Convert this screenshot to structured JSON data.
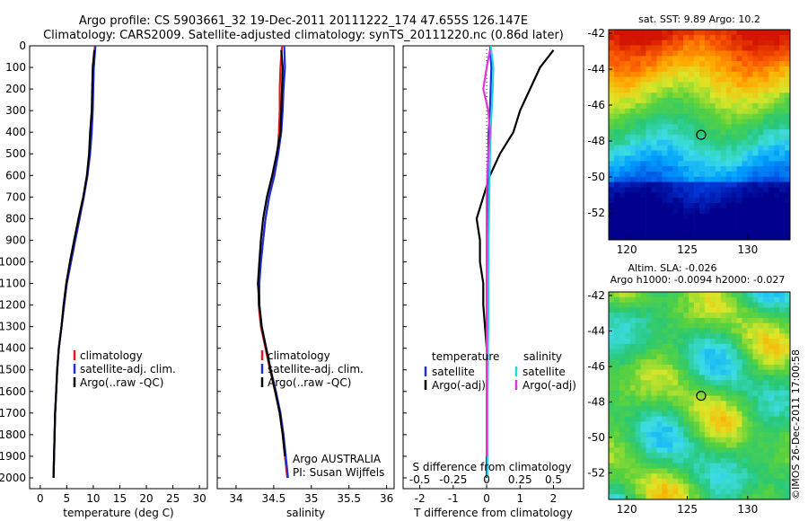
{
  "title": {
    "line1": "Argo profile: CS 5903661_32 19-Dec-2011 20111222_174 47.655S 126.147E",
    "line2": "Climatology: CARS2009. Satellite-adjusted climatology: synTS_20111220.nc (0.86d later)"
  },
  "colors": {
    "climatology": "#e41a1c",
    "satellite": "#1f2fd6",
    "argo": "#000000",
    "salinity_satellite": "#22d4e6",
    "salinity_argo": "#e433d8"
  },
  "chart_data": [
    {
      "type": "line",
      "id": "temperature",
      "xlabel": "temperature (deg C)",
      "xticks": [
        0,
        5,
        10,
        15,
        20,
        25,
        30
      ],
      "xlim": [
        -2,
        31.5
      ],
      "ylim": [
        0,
        2050
      ],
      "yticks": [
        0,
        100,
        200,
        300,
        400,
        500,
        600,
        700,
        800,
        900,
        1000,
        1100,
        1200,
        1300,
        1400,
        1500,
        1600,
        1700,
        1800,
        1900,
        2000
      ],
      "yreversed": true,
      "legend": [
        "climatology",
        "satellite-adj. clim.",
        "Argo(..raw -QC)"
      ],
      "series": [
        {
          "name": "climatology",
          "color": "#e41a1c",
          "x": [
            10.3,
            10.0,
            9.9,
            9.8,
            9.6,
            9.3,
            8.9,
            8.2,
            7.4,
            6.6,
            5.8,
            5.0,
            4.5,
            4.0,
            3.5,
            3.2,
            3.0,
            2.8,
            2.7,
            2.6,
            2.5
          ],
          "y": [
            0,
            100,
            200,
            300,
            400,
            500,
            600,
            700,
            800,
            900,
            1000,
            1100,
            1200,
            1300,
            1400,
            1500,
            1600,
            1700,
            1800,
            1900,
            2000
          ]
        },
        {
          "name": "satellite-adj. clim.",
          "color": "#1f2fd6",
          "x": [
            10.4,
            10.1,
            10.0,
            9.9,
            9.7,
            9.4,
            8.9,
            8.2,
            7.4,
            6.6,
            5.8,
            5.0,
            4.5,
            4.0,
            3.5,
            3.2,
            3.0,
            2.8,
            2.7,
            2.6,
            2.5
          ],
          "y": [
            0,
            100,
            200,
            300,
            400,
            500,
            600,
            700,
            800,
            900,
            1000,
            1100,
            1200,
            1300,
            1400,
            1500,
            1600,
            1700,
            1800,
            1900,
            2000
          ]
        },
        {
          "name": "Argo(..raw -QC)",
          "color": "#000000",
          "x": [
            10.2,
            9.9,
            9.8,
            9.7,
            9.4,
            9.2,
            8.8,
            8.1,
            7.2,
            6.4,
            5.6,
            4.9,
            4.4,
            4.0,
            3.5,
            3.2,
            3.0,
            2.8,
            2.7,
            2.6,
            2.5
          ],
          "y": [
            20,
            100,
            200,
            300,
            400,
            500,
            600,
            700,
            800,
            900,
            1000,
            1100,
            1200,
            1300,
            1400,
            1500,
            1600,
            1700,
            1800,
            1900,
            2000
          ]
        }
      ]
    },
    {
      "type": "line",
      "id": "salinity",
      "xlabel": "salinity",
      "xticks": [
        34,
        34.5,
        35,
        35.5,
        36
      ],
      "xlim": [
        33.75,
        36.1
      ],
      "ylim": [
        0,
        2050
      ],
      "yreversed": true,
      "legend": [
        "climatology",
        "satellite-adj. clim.",
        "Argo(..raw -QC)"
      ],
      "annotations": [
        "Argo AUSTRALIA",
        "PI: Susan Wijffels"
      ],
      "series": [
        {
          "name": "climatology",
          "color": "#e41a1c",
          "x": [
            34.61,
            34.59,
            34.58,
            34.58,
            34.57,
            34.55,
            34.5,
            34.44,
            34.39,
            34.36,
            34.33,
            34.3,
            34.3,
            34.33,
            34.39,
            34.45,
            34.52,
            34.58,
            34.62,
            34.65,
            34.68
          ],
          "y": [
            0,
            100,
            200,
            300,
            400,
            500,
            600,
            700,
            800,
            900,
            1000,
            1100,
            1200,
            1300,
            1400,
            1500,
            1600,
            1700,
            1800,
            1900,
            2000
          ]
        },
        {
          "name": "satellite-adj. clim.",
          "color": "#1f2fd6",
          "x": [
            34.64,
            34.65,
            34.63,
            34.62,
            34.6,
            34.56,
            34.51,
            34.44,
            34.39,
            34.36,
            34.33,
            34.31,
            34.31,
            34.34,
            34.4,
            34.46,
            34.53,
            34.59,
            34.63,
            34.66,
            34.69
          ],
          "y": [
            0,
            100,
            200,
            300,
            400,
            500,
            600,
            700,
            800,
            900,
            1000,
            1100,
            1200,
            1300,
            1400,
            1500,
            1600,
            1700,
            1800,
            1900,
            2000
          ]
        },
        {
          "name": "Argo(..raw -QC)",
          "color": "#000000",
          "x": [
            34.6,
            34.62,
            34.61,
            34.6,
            34.59,
            34.54,
            34.48,
            34.41,
            34.36,
            34.33,
            34.31,
            34.29,
            34.31,
            34.34,
            34.4,
            34.46,
            34.52,
            34.58,
            34.62,
            34.65
          ],
          "y": [
            20,
            100,
            200,
            300,
            400,
            500,
            600,
            700,
            800,
            900,
            1000,
            1100,
            1200,
            1300,
            1400,
            1500,
            1600,
            1700,
            1800,
            1900
          ]
        }
      ]
    },
    {
      "type": "line",
      "id": "difference",
      "xlabel": "T difference from climatology",
      "xticks": [
        -2,
        -1,
        0,
        1,
        2
      ],
      "xlim": [
        -2.5,
        2.9
      ],
      "top_label": "S difference from climatology",
      "top_ticks": [
        {
          "label": "-0.5",
          "t": -2
        },
        {
          "label": "-0.25",
          "t": -1
        },
        {
          "label": "0",
          "t": 0
        },
        {
          "label": "0.25",
          "t": 1
        },
        {
          "label": "0.5",
          "t": 2
        }
      ],
      "ylim": [
        0,
        2050
      ],
      "yreversed": true,
      "legend_left": {
        "title": "temperature",
        "items": [
          "satellite",
          "Argo(-adj)"
        ]
      },
      "legend_right": {
        "title": "salinity",
        "items": [
          "satellite",
          "Argo(-adj)"
        ]
      },
      "series": [
        {
          "name": "T satellite",
          "color": "#1f2fd6",
          "x": [
            0.1,
            0.14,
            0.12,
            0.1,
            0.06,
            0.05,
            0.05,
            0.04,
            0.03,
            0.02,
            0.01,
            0.0,
            0.0,
            0.0,
            0.0,
            0.0,
            0.0,
            0.0,
            0.0,
            0.0,
            0.0
          ],
          "y": [
            0,
            100,
            200,
            300,
            400,
            500,
            600,
            700,
            800,
            900,
            1000,
            1100,
            1200,
            1300,
            1400,
            1500,
            1600,
            1700,
            1800,
            1900,
            2000
          ]
        },
        {
          "name": "T Argo(-adj)",
          "color": "#000000",
          "x": [
            2.0,
            1.6,
            1.3,
            1.0,
            0.8,
            0.4,
            0.1,
            -0.1,
            -0.3,
            -0.2,
            -0.2,
            -0.1,
            -0.1,
            -0.05,
            0.0,
            0.0,
            0.0,
            0.0,
            0.0,
            0.0
          ],
          "y": [
            20,
            100,
            200,
            300,
            400,
            500,
            600,
            700,
            800,
            900,
            1000,
            1100,
            1200,
            1300,
            1400,
            1500,
            1600,
            1700,
            1800,
            1900
          ]
        },
        {
          "name": "S satellite",
          "color": "#22d4e6",
          "x": [
            0.12,
            0.2,
            0.18,
            0.15,
            0.12,
            0.1,
            0.09,
            0.08,
            0.07,
            0.06,
            0.06,
            0.05,
            0.05,
            0.05,
            0.04,
            0.04,
            0.03,
            0.03,
            0.03,
            0.03,
            0.03
          ],
          "y": [
            0,
            100,
            200,
            300,
            400,
            500,
            600,
            700,
            800,
            900,
            1000,
            1100,
            1200,
            1300,
            1400,
            1500,
            1600,
            1700,
            1800,
            1900,
            2000
          ]
        },
        {
          "name": "S Argo(-adj)",
          "color": "#e433d8",
          "x": [
            0.1,
            0.0,
            -0.1,
            0.05,
            0.1,
            0.05,
            0.02,
            0.0,
            0.0,
            0.0,
            0.0,
            0.0,
            0.0,
            0.0,
            0.0,
            0.0,
            0.0,
            0.0,
            0.0,
            0.0
          ],
          "y": [
            20,
            100,
            200,
            300,
            400,
            500,
            600,
            700,
            800,
            900,
            1000,
            1100,
            1200,
            1300,
            1400,
            1500,
            1600,
            1700,
            1800,
            1900
          ]
        }
      ]
    },
    {
      "type": "heatmap",
      "id": "sst_map",
      "title": "sat. SST: 9.89  Argo: 10.2",
      "xticks": [
        120,
        125,
        130
      ],
      "yticks": [
        -42,
        -44,
        -46,
        -48,
        -50,
        -52
      ],
      "xlim": [
        118.5,
        133.5
      ],
      "ylim": [
        -53.5,
        -41.8
      ],
      "marker": {
        "lon": 126.147,
        "lat": -47.655
      }
    },
    {
      "type": "heatmap",
      "id": "sla_map",
      "title_line1": "Altim. SLA: -0.026",
      "title_line2": "Argo h1000: -0.0094  h2000: -0.027",
      "xticks": [
        120,
        125,
        130
      ],
      "yticks": [
        -42,
        -44,
        -46,
        -48,
        -50,
        -52
      ],
      "xlim": [
        118.5,
        133.5
      ],
      "ylim": [
        -53.5,
        -41.8
      ],
      "marker": {
        "lon": 126.147,
        "lat": -47.655
      }
    }
  ],
  "stamp": "©IMOS 26-Dec-2011 17:00:58"
}
